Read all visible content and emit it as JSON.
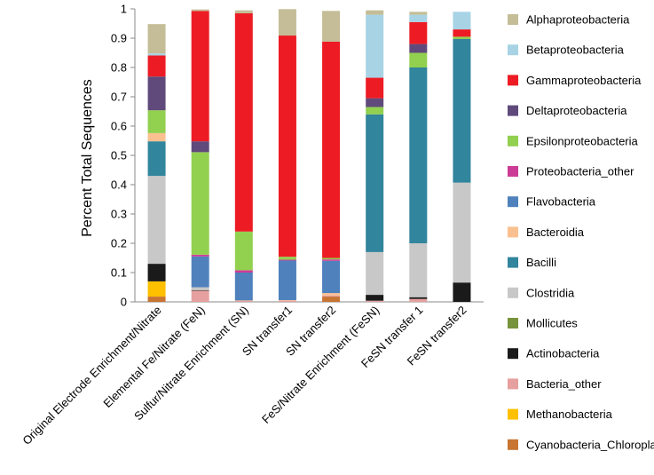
{
  "chart_data": {
    "type": "bar",
    "stacked": true,
    "title": "",
    "xlabel": "",
    "ylabel": "Percent Total Sequences",
    "ylim": [
      0,
      1
    ],
    "yticks": [
      "0",
      "0.1",
      "0.2",
      "0.3",
      "0.4",
      "0.5",
      "0.6",
      "0.7",
      "0.8",
      "0.9",
      "1"
    ],
    "legend_position": "right",
    "categories": [
      "Original Electrode Enrichment/Nitrate",
      "Elemental Fe/Nitrate (FeN)",
      "Sulfur/Nitrate Enrichment (SN)",
      "SN transfer1",
      "SN transfer2",
      "FeS/Nitrate Enrichment (FeSN)",
      "FeSN transfer 1",
      "FeSN transfer2"
    ],
    "series": [
      {
        "name": "Cyanobacteria_Chloroplast",
        "color": "#c87533",
        "values": [
          0.018,
          0.0,
          0.0,
          0.0,
          0.018,
          0.0,
          0.0,
          0.0
        ]
      },
      {
        "name": "Methanobacteria",
        "color": "#ffc000",
        "values": [
          0.052,
          0.0,
          0.0,
          0.0,
          0.0,
          0.0,
          0.0,
          0.0
        ]
      },
      {
        "name": "Bacteria_other",
        "color": "#e6a0a0",
        "values": [
          0.0,
          0.038,
          0.003,
          0.004,
          0.004,
          0.004,
          0.01,
          0.0
        ]
      },
      {
        "name": "Actinobacteria",
        "color": "#1a1a1a",
        "values": [
          0.06,
          0.002,
          0.0,
          0.0,
          0.0,
          0.02,
          0.006,
          0.066
        ]
      },
      {
        "name": "Mollicutes",
        "color": "#77933c",
        "values": [
          0.0,
          0.0,
          0.0,
          0.0,
          0.0,
          0.0,
          0.0,
          0.0
        ]
      },
      {
        "name": "Clostridia",
        "color": "#c8c8c8",
        "values": [
          0.3,
          0.01,
          0.0,
          0.0,
          0.0,
          0.146,
          0.184,
          0.341
        ]
      },
      {
        "name": "Bacilli",
        "color": "#31859c",
        "values": [
          0.118,
          0.0,
          0.0,
          0.0,
          0.0,
          0.47,
          0.6,
          0.49
        ]
      },
      {
        "name": "Bacteroidia",
        "color": "#fac090",
        "values": [
          0.028,
          0.0,
          0.002,
          0.002,
          0.008,
          0.0,
          0.0,
          0.0
        ]
      },
      {
        "name": "Flavobacteria",
        "color": "#4f81bd",
        "values": [
          0.0,
          0.105,
          0.095,
          0.135,
          0.11,
          0.0,
          0.0,
          0.0
        ]
      },
      {
        "name": "Proteobacteria_other",
        "color": "#cc3c96",
        "values": [
          0.0,
          0.006,
          0.008,
          0.003,
          0.005,
          0.0,
          0.0,
          0.0
        ]
      },
      {
        "name": "Epsilonproteobacteria",
        "color": "#92d050",
        "values": [
          0.078,
          0.35,
          0.132,
          0.01,
          0.005,
          0.025,
          0.05,
          0.008
        ]
      },
      {
        "name": "Deltaproteobacteria",
        "color": "#604a7b",
        "values": [
          0.115,
          0.037,
          0.0,
          0.0,
          0.0,
          0.03,
          0.03,
          0.0
        ]
      },
      {
        "name": "Gammaproteobacteria",
        "color": "#ed1c24",
        "values": [
          0.072,
          0.445,
          0.745,
          0.755,
          0.738,
          0.07,
          0.075,
          0.025
        ]
      },
      {
        "name": "Betaproteobacteria",
        "color": "#a7d3e5",
        "values": [
          0.007,
          0.0,
          0.0,
          0.0,
          0.0,
          0.215,
          0.025,
          0.06
        ]
      },
      {
        "name": "Alphaproteobacteria",
        "color": "#c4bd97",
        "values": [
          0.1,
          0.005,
          0.01,
          0.09,
          0.105,
          0.015,
          0.01,
          0.0
        ]
      }
    ]
  }
}
